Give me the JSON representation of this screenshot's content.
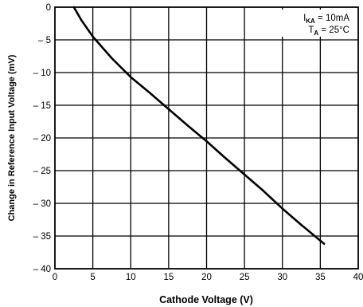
{
  "chart_data": {
    "type": "line",
    "title": "",
    "xlabel": "Cathode Voltage (V)",
    "ylabel": "Change in Reference Input Voltage (mV)",
    "xlim": [
      0,
      40
    ],
    "ylim": [
      -40,
      0
    ],
    "xticks": [
      0,
      5,
      10,
      15,
      20,
      25,
      30,
      35,
      40
    ],
    "yticks": [
      0,
      -5,
      -10,
      -15,
      -20,
      -25,
      -30,
      -35,
      -40
    ],
    "xtick_labels": [
      "0",
      "5",
      "10",
      "15",
      "20",
      "25",
      "30",
      "35",
      "40"
    ],
    "ytick_labels": [
      "0",
      "– 5",
      "– 10",
      "– 15",
      "– 20",
      "– 25",
      "– 30",
      "– 35",
      "– 40"
    ],
    "grid": true,
    "series": [
      {
        "color": "#000000",
        "x": [
          2.5,
          3.5,
          5.0,
          7.5,
          10.0,
          12.5,
          15.0,
          17.5,
          20.0,
          22.5,
          25.0,
          27.5,
          30.0,
          32.5,
          35.5
        ],
        "y": [
          0,
          -2.0,
          -4.5,
          -7.8,
          -10.7,
          -13.1,
          -15.6,
          -18.1,
          -20.5,
          -23.1,
          -25.6,
          -28.1,
          -30.8,
          -33.3,
          -36.2
        ]
      }
    ],
    "annotations": [
      {
        "main": "I",
        "sub": "KA",
        "rest": " = 10mA"
      },
      {
        "main": "T",
        "sub": "A",
        "rest": " = 25°C"
      }
    ]
  }
}
